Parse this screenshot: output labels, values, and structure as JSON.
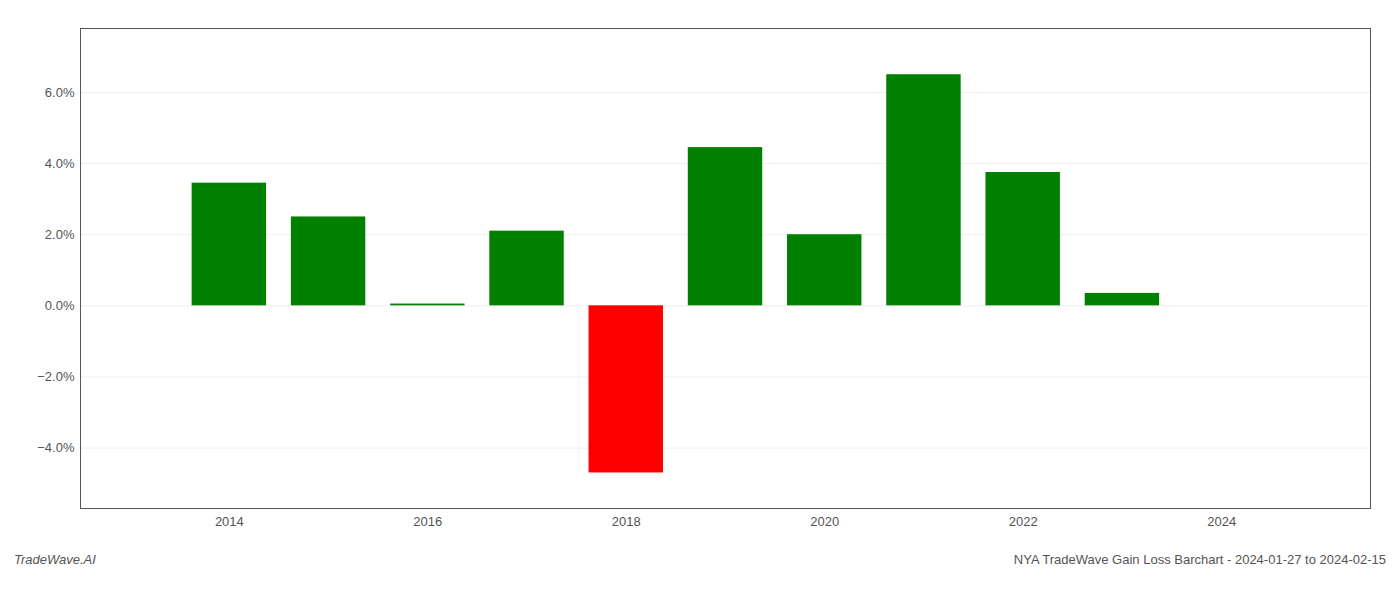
{
  "chart_data": {
    "type": "bar",
    "x": [
      2014,
      2015,
      2016,
      2017,
      2018,
      2019,
      2020,
      2021,
      2022,
      2023
    ],
    "values": [
      0.0345,
      0.025,
      0.0005,
      0.021,
      -0.047,
      0.0445,
      0.02,
      0.065,
      0.0375,
      0.0035
    ],
    "colors": [
      "#008000",
      "#008000",
      "#008000",
      "#008000",
      "#ff0000",
      "#008000",
      "#008000",
      "#008000",
      "#008000",
      "#008000"
    ],
    "xlim": [
      2012.5,
      2025.5
    ],
    "xticks": [
      2014,
      2016,
      2018,
      2020,
      2022,
      2024
    ],
    "ylim": [
      -0.057,
      0.078
    ],
    "yticks": [
      {
        "value": -0.04,
        "label": "−4.0%"
      },
      {
        "value": -0.02,
        "label": "−2.0%"
      },
      {
        "value": 0.0,
        "label": "0.0%"
      },
      {
        "value": 0.02,
        "label": "2.0%"
      },
      {
        "value": 0.04,
        "label": "4.0%"
      },
      {
        "value": 0.06,
        "label": "6.0%"
      }
    ],
    "grid": true,
    "annotations": [
      "TradeWave.AI",
      "NYA TradeWave Gain Loss Barchart - 2024-01-27 to 2024-02-15"
    ]
  }
}
